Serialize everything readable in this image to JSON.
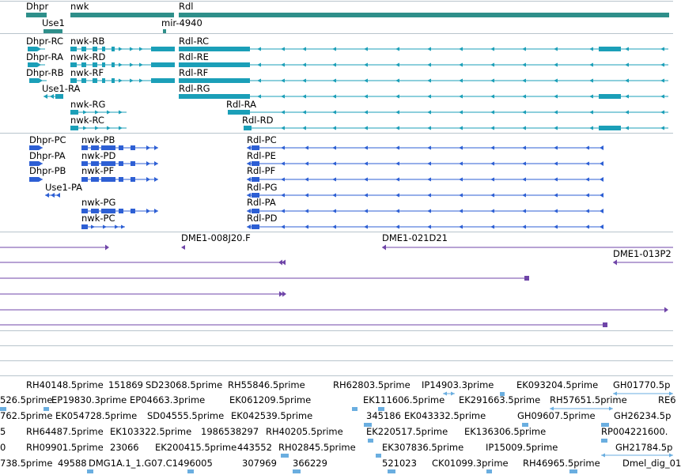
{
  "colors": {
    "gene": "#2e8f8a",
    "transcript": "#1b9fb8",
    "cds": "#2d5fd4",
    "clone": "#6f45a8",
    "est": "#6aaee0",
    "divider": "#b8c4cc"
  },
  "gene_track": {
    "labels": [
      "Dhpr",
      "nwk",
      "Rdl",
      "Use1",
      "mir-4940"
    ]
  },
  "transcript_track": {
    "labels": [
      "Dhpr-RC",
      "nwk-RB",
      "Rdl-RC",
      "Dhpr-RA",
      "nwk-RD",
      "Rdl-RE",
      "Dhpr-RB",
      "nwk-RF",
      "Rdl-RF",
      "Use1-RA",
      "Rdl-RG",
      "nwk-RG",
      "Rdl-RA",
      "nwk-RC",
      "Rdl-RD"
    ]
  },
  "protein_track": {
    "labels": [
      "Dhpr-PC",
      "nwk-PB",
      "Rdl-PC",
      "Dhpr-PA",
      "nwk-PD",
      "Rdl-PE",
      "Dhpr-PB",
      "nwk-PF",
      "Rdl-PF",
      "Use1-PA",
      "Rdl-PG",
      "nwk-PG",
      "Rdl-PA",
      "nwk-PC",
      "Rdl-PD"
    ]
  },
  "clone_track": {
    "labels": [
      "DME1-008J20.F",
      "DME1-021D21",
      "DME1-013P2"
    ]
  },
  "est_track": {
    "labels": [
      "RH40148.5prime",
      "151869",
      "SD23068.5prime",
      "RH55846.5prime",
      "RH62803.5prime",
      "IP14903.3prime",
      "EK093204.5prime",
      "GH01770.5p",
      "526.5prime",
      "EP19830.3prime",
      "EP04663.3prime",
      "EK061209.5prime",
      "EK111606.5prime",
      "EK291663.5prime",
      "RH57651.5prime",
      "RE6",
      "762.5prime",
      "EK054728.5prime",
      "SD04555.5prime",
      "EK042539.5prime",
      "345186",
      "EK043332.5prime",
      "GH09607.5prime",
      "GH26234.5p",
      "5",
      "RH64487.5prime",
      "EK103322.5prime",
      "1986538297",
      "RH40205.5prime",
      "EK220517.5prime",
      "EK136306.5prime",
      "RP004221600.",
      "0",
      "RH09901.5prime",
      "23066",
      "EK200415.5prime",
      "443552",
      "RH02845.5prime",
      "EK307836.5prime",
      "IP15009.5prime",
      "GH21784.5p",
      "738.5prime",
      "49588",
      "DMG1A.1_1.G07.C1496005",
      "307969",
      "366229",
      "521023",
      "CK01099.3prime",
      "RH46965.5prime",
      "Dmel_dig_01"
    ]
  }
}
